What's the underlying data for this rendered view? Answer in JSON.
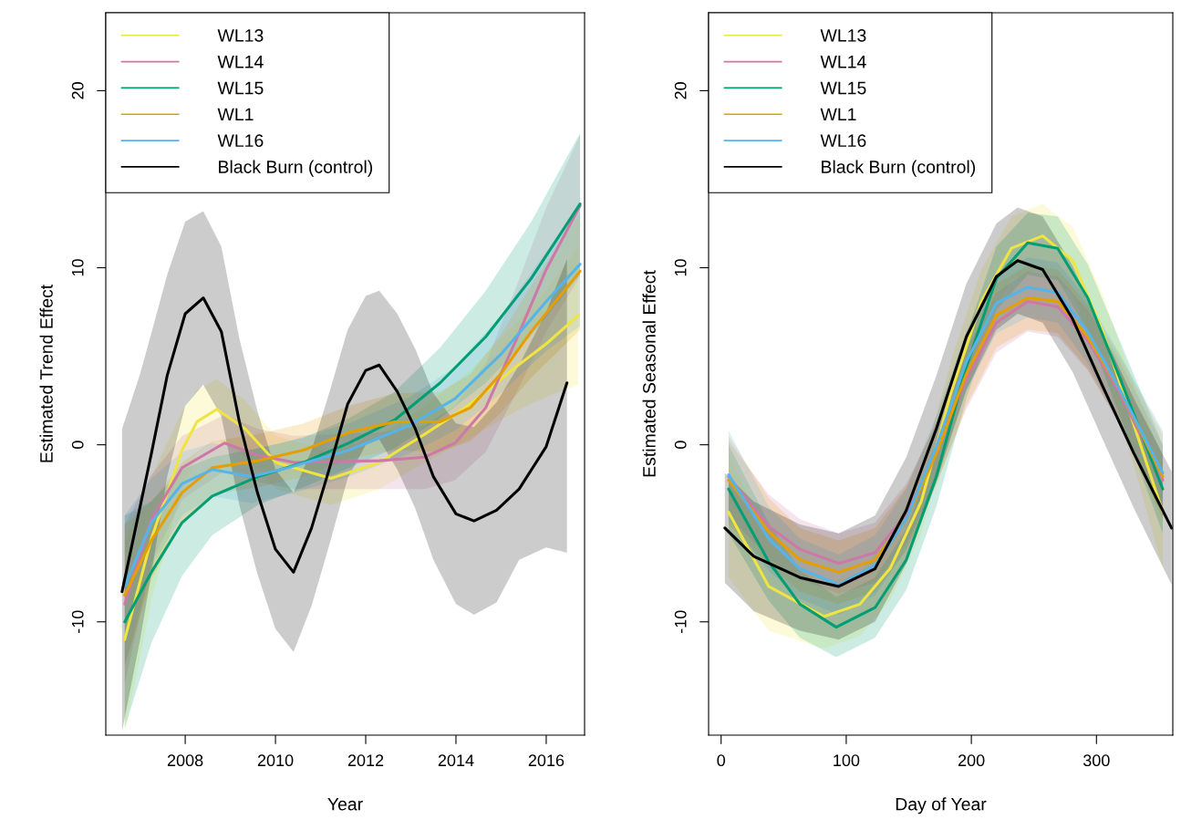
{
  "chart_data": [
    {
      "type": "line",
      "xlabel": "Year",
      "ylabel": "Estimated Trend Effect",
      "xlim": [
        2006.24,
        2016.85
      ],
      "ylim": [
        -16.4,
        24.4
      ],
      "xticks": [
        2008,
        2010,
        2012,
        2014,
        2016
      ],
      "yticks": [
        -10,
        0,
        10,
        20
      ],
      "grid": false,
      "legend": "top left",
      "line_style": "solid",
      "marker": "none",
      "series": [
        {
          "name": "WL13",
          "color": "#f0e442",
          "x": [
            2006.66,
            2007.25,
            2007.93,
            2008.26,
            2008.7,
            2009.33,
            2010.01,
            2011.23,
            2012.3,
            2013.31,
            2014.32,
            2015.33,
            2016.0,
            2016.71
          ],
          "values": [
            -11.0,
            -5.3,
            -0.3,
            1.3,
            2.0,
            0.9,
            -1.0,
            -1.9,
            -1.0,
            0.6,
            2.3,
            4.4,
            5.7,
            7.3
          ],
          "lower": [
            -16.3,
            -8.8,
            -2.5,
            -0.5,
            0.3,
            -0.7,
            -2.5,
            -3.4,
            -2.5,
            -1.0,
            0.4,
            1.9,
            2.7,
            3.4
          ],
          "upper": [
            -5.5,
            -1.8,
            1.9,
            3.1,
            3.7,
            2.5,
            0.5,
            -0.4,
            0.5,
            2.2,
            4.2,
            6.9,
            8.7,
            11.2
          ]
        },
        {
          "name": "WL14",
          "color": "#cc79a7",
          "x": [
            2006.66,
            2007.25,
            2007.93,
            2008.87,
            2009.61,
            2010.42,
            2012.3,
            2013.31,
            2013.98,
            2014.66,
            2015.33,
            2016.0,
            2016.75
          ],
          "values": [
            -9.0,
            -4.2,
            -1.3,
            0.1,
            -0.6,
            -1.0,
            -0.9,
            -0.7,
            0.1,
            2.1,
            5.9,
            9.9,
            13.5
          ],
          "lower": [
            -13.5,
            -6.7,
            -3.1,
            -1.5,
            -2.1,
            -2.5,
            -2.5,
            -2.5,
            -2.0,
            -0.4,
            2.9,
            6.4,
            9.5
          ],
          "upper": [
            -4.5,
            -1.7,
            0.5,
            1.7,
            0.9,
            0.5,
            0.7,
            1.1,
            2.2,
            4.6,
            8.9,
            13.4,
            17.5
          ]
        },
        {
          "name": "WL15",
          "color": "#009e73",
          "x": [
            2006.66,
            2007.25,
            2007.93,
            2008.6,
            2009.61,
            2010.62,
            2011.63,
            2012.64,
            2013.65,
            2014.66,
            2015.67,
            2016.75
          ],
          "values": [
            -10.0,
            -7.2,
            -4.4,
            -2.9,
            -1.8,
            -1.0,
            0.1,
            1.4,
            3.5,
            6.1,
            9.4,
            13.6
          ],
          "lower": [
            -16.0,
            -11.2,
            -7.4,
            -5.1,
            -3.4,
            -2.4,
            -1.3,
            -0.2,
            1.5,
            3.5,
            6.2,
            9.6
          ],
          "upper": [
            -4.0,
            -3.2,
            -1.4,
            -0.7,
            -0.2,
            0.4,
            1.5,
            3.0,
            5.5,
            8.7,
            12.6,
            17.6
          ]
        },
        {
          "name": "WL1",
          "color": "#e69f00",
          "x": [
            2006.66,
            2007.25,
            2007.93,
            2008.6,
            2009.61,
            2010.62,
            2011.63,
            2012.64,
            2013.65,
            2014.32,
            2014.99,
            2015.67,
            2016.75
          ],
          "values": [
            -8.5,
            -5.4,
            -2.7,
            -1.3,
            -0.9,
            -0.3,
            0.7,
            1.3,
            1.3,
            2.1,
            4.0,
            6.4,
            9.8
          ],
          "lower": [
            -12.5,
            -7.6,
            -4.4,
            -2.8,
            -2.4,
            -1.8,
            -0.8,
            -0.3,
            -0.4,
            0.2,
            1.8,
            3.8,
            6.5
          ],
          "upper": [
            -4.5,
            -3.2,
            -1.0,
            0.2,
            0.6,
            1.2,
            2.2,
            2.9,
            3.0,
            4.0,
            6.2,
            9.0,
            13.1
          ]
        },
        {
          "name": "WL16",
          "color": "#56b4e9",
          "x": [
            2006.66,
            2007.25,
            2007.93,
            2008.6,
            2009.47,
            2010.28,
            2011.63,
            2012.97,
            2013.98,
            2014.99,
            2016.0,
            2016.75
          ],
          "values": [
            -8.0,
            -4.4,
            -2.2,
            -1.4,
            -1.8,
            -1.3,
            -0.3,
            1.1,
            2.6,
            5.1,
            8.1,
            10.2
          ],
          "lower": [
            -12.5,
            -6.9,
            -4.0,
            -2.9,
            -3.3,
            -2.8,
            -1.8,
            -0.5,
            0.8,
            2.9,
            5.3,
            6.7
          ],
          "upper": [
            -4.0,
            -1.9,
            -0.4,
            0.1,
            -0.3,
            0.2,
            1.2,
            2.7,
            4.4,
            7.3,
            10.9,
            13.7
          ]
        },
        {
          "name": "Black Burn (control)",
          "color": "#000000",
          "x": [
            2006.6,
            2007.0,
            2007.25,
            2007.6,
            2008.0,
            2008.4,
            2008.8,
            2009.2,
            2009.6,
            2010.0,
            2010.4,
            2010.8,
            2011.2,
            2011.6,
            2012.0,
            2012.3,
            2012.7,
            2013.1,
            2013.5,
            2014.0,
            2014.4,
            2014.9,
            2015.4,
            2016.0,
            2016.46
          ],
          "values": [
            -8.3,
            -3.5,
            -0.5,
            3.9,
            7.4,
            8.3,
            6.4,
            1.3,
            -2.7,
            -5.9,
            -7.2,
            -4.7,
            -1.3,
            2.3,
            4.2,
            4.5,
            3.0,
            0.9,
            -1.8,
            -3.9,
            -4.3,
            -3.7,
            -2.5,
            -0.1,
            3.5
          ],
          "lower": [
            -16.2,
            -11.0,
            -7.3,
            -1.8,
            2.2,
            3.4,
            1.6,
            -3.4,
            -7.3,
            -10.4,
            -11.7,
            -9.1,
            -5.6,
            -1.9,
            0.0,
            0.3,
            -1.4,
            -3.6,
            -6.5,
            -9.0,
            -9.6,
            -8.9,
            -6.5,
            -5.8,
            -6.1
          ],
          "upper": [
            0.9,
            4.0,
            6.3,
            9.6,
            12.6,
            13.2,
            11.2,
            6.0,
            1.9,
            -1.4,
            -2.7,
            -0.3,
            3.0,
            6.5,
            8.4,
            8.7,
            7.4,
            5.4,
            2.9,
            1.2,
            1.0,
            2.4,
            4.5,
            7.5,
            10.5
          ]
        }
      ]
    },
    {
      "type": "line",
      "xlabel": "Day of Year",
      "ylabel": "Estimated Seasonal Effect",
      "xlim": [
        -10,
        361
      ],
      "ylim": [
        -16.4,
        24.4
      ],
      "xticks": [
        0,
        100,
        200,
        300
      ],
      "yticks": [
        -10,
        0,
        10,
        20
      ],
      "grid": false,
      "legend": "top left",
      "line_style": "solid",
      "marker": "none",
      "series": [
        {
          "name": "WL13",
          "color": "#f0e442",
          "x": [
            6,
            38,
            82,
            111,
            135,
            160,
            184,
            208,
            232,
            257,
            281,
            305,
            330,
            353
          ],
          "values": [
            -3.8,
            -8.0,
            -9.7,
            -9.0,
            -7.0,
            -3.2,
            3.0,
            8.1,
            11.1,
            11.8,
            10.4,
            6.4,
            1.1,
            -3.8
          ],
          "lower": [
            -7.5,
            -10.5,
            -11.5,
            -10.8,
            -8.8,
            -5.0,
            1.2,
            6.3,
            9.3,
            10.0,
            8.5,
            4.3,
            -1.2,
            -7.0
          ],
          "upper": [
            -0.5,
            -5.5,
            -7.9,
            -7.2,
            -5.2,
            -1.4,
            4.8,
            9.9,
            12.9,
            13.6,
            12.3,
            8.5,
            3.4,
            -0.8
          ]
        },
        {
          "name": "WL14",
          "color": "#cc79a7",
          "x": [
            6,
            38,
            63,
            94,
            123,
            148,
            172,
            196,
            220,
            245,
            269,
            293,
            318,
            353
          ],
          "values": [
            -1.8,
            -4.6,
            -5.9,
            -6.7,
            -6.1,
            -3.9,
            -0.5,
            3.7,
            6.9,
            8.1,
            7.8,
            5.9,
            3.0,
            -2.0
          ],
          "lower": [
            -4.0,
            -6.4,
            -7.6,
            -8.4,
            -7.8,
            -5.6,
            -2.2,
            2.0,
            5.2,
            6.4,
            6.1,
            4.2,
            1.2,
            -4.0
          ],
          "upper": [
            0.2,
            -2.8,
            -4.2,
            -5.0,
            -4.4,
            -2.2,
            1.2,
            5.4,
            8.6,
            9.8,
            9.5,
            7.6,
            4.8,
            0.0
          ]
        },
        {
          "name": "WL15",
          "color": "#009e73",
          "x": [
            6,
            38,
            63,
            92,
            123,
            148,
            172,
            196,
            220,
            245,
            269,
            293,
            318,
            353
          ],
          "values": [
            -2.5,
            -6.6,
            -9.0,
            -10.3,
            -9.2,
            -6.5,
            -1.8,
            4.4,
            9.4,
            11.4,
            11.1,
            8.3,
            3.9,
            -2.5
          ],
          "lower": [
            -5.0,
            -8.8,
            -10.9,
            -12.0,
            -10.9,
            -8.2,
            -3.5,
            2.6,
            7.6,
            9.6,
            9.3,
            6.4,
            1.8,
            -5.0
          ],
          "upper": [
            0.0,
            -4.4,
            -7.1,
            -8.6,
            -7.5,
            -4.8,
            -0.1,
            6.2,
            11.2,
            13.1,
            12.9,
            10.2,
            6.0,
            0.0
          ]
        },
        {
          "name": "WL1",
          "color": "#e69f00",
          "x": [
            6,
            38,
            63,
            94,
            123,
            148,
            172,
            196,
            220,
            245,
            269,
            293,
            318,
            353
          ],
          "values": [
            -2.0,
            -4.9,
            -6.5,
            -7.2,
            -6.5,
            -4.2,
            -0.5,
            4.0,
            7.3,
            8.3,
            8.1,
            6.1,
            3.2,
            -1.8
          ],
          "lower": [
            -4.5,
            -6.8,
            -8.3,
            -9.0,
            -8.3,
            -6.0,
            -2.3,
            2.2,
            5.5,
            6.5,
            6.3,
            4.3,
            1.3,
            -4.2
          ],
          "upper": [
            0.5,
            -3.0,
            -4.7,
            -5.4,
            -4.7,
            -2.4,
            1.3,
            5.8,
            9.1,
            10.1,
            9.9,
            7.9,
            5.1,
            0.6
          ]
        },
        {
          "name": "WL16",
          "color": "#56b4e9",
          "x": [
            6,
            38,
            63,
            94,
            123,
            148,
            172,
            196,
            220,
            245,
            269,
            293,
            318,
            353
          ],
          "values": [
            -1.7,
            -5.3,
            -7.0,
            -7.9,
            -6.8,
            -4.2,
            -0.1,
            4.7,
            8.0,
            8.9,
            8.6,
            6.4,
            3.2,
            -1.6
          ],
          "lower": [
            -4.2,
            -7.1,
            -8.7,
            -9.6,
            -8.5,
            -5.9,
            -1.8,
            3.0,
            6.3,
            7.2,
            6.9,
            4.6,
            1.2,
            -4.0
          ],
          "upper": [
            0.8,
            -3.5,
            -5.3,
            -6.2,
            -5.1,
            -2.5,
            1.6,
            6.4,
            9.7,
            10.6,
            10.3,
            8.2,
            5.2,
            0.8
          ]
        },
        {
          "name": "Black Burn (control)",
          "color": "#000000",
          "x": [
            3,
            26,
            63,
            94,
            123,
            148,
            172,
            196,
            220,
            237,
            257,
            281,
            305,
            330,
            360
          ],
          "values": [
            -4.7,
            -6.3,
            -7.5,
            -8.0,
            -7.0,
            -3.7,
            0.9,
            6.1,
            9.5,
            10.4,
            9.9,
            7.1,
            3.3,
            -0.5,
            -4.7
          ],
          "lower": [
            -7.8,
            -9.4,
            -10.5,
            -11.0,
            -10.0,
            -6.7,
            -2.1,
            3.1,
            6.5,
            7.4,
            6.9,
            4.1,
            0.3,
            -3.6,
            -7.9
          ],
          "upper": [
            -1.6,
            -3.2,
            -4.5,
            -5.0,
            -4.0,
            -0.7,
            3.9,
            9.1,
            12.5,
            13.4,
            12.9,
            10.1,
            6.3,
            2.6,
            -1.5
          ]
        }
      ]
    }
  ]
}
